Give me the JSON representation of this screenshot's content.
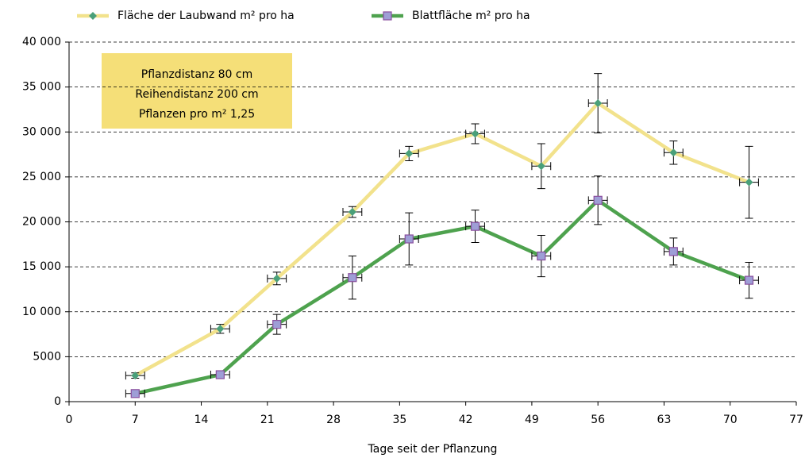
{
  "chart_data": {
    "type": "line",
    "xlabel": "Tage seit der Pflanzung",
    "annotation": [
      "Pflanzdistanz 80 cm",
      "Reihendistanz 200 cm",
      "Pflanzen pro m² 1,25"
    ],
    "x": [
      7,
      16,
      22,
      30,
      36,
      43,
      50,
      56,
      64,
      72
    ],
    "series": [
      {
        "name": "Fläche der Laubwand m² pro ha",
        "color": "#f2e28c",
        "marker": "diamond",
        "marker_color": "#4aa07a",
        "values": [
          2900,
          8100,
          13700,
          21100,
          27600,
          29800,
          26200,
          33200,
          27700,
          24400
        ],
        "y_errors": [
          300,
          500,
          700,
          600,
          800,
          1100,
          2500,
          3300,
          1300,
          4000
        ],
        "x_errors": [
          1,
          1,
          1,
          1,
          1,
          1,
          1,
          1,
          1,
          1
        ]
      },
      {
        "name": "Blattfläche m² pro ha",
        "color": "#4ea24e",
        "marker": "square",
        "marker_color": "#9e9ed6",
        "values": [
          900,
          3000,
          8600,
          13800,
          18100,
          19500,
          16200,
          22400,
          16700,
          13500
        ],
        "y_errors": [
          200,
          200,
          1100,
          2400,
          2900,
          1800,
          2300,
          2700,
          1500,
          2000
        ],
        "x_errors": [
          1,
          1,
          1,
          1,
          1,
          1,
          1,
          1,
          1,
          1
        ]
      }
    ],
    "xlim": [
      0,
      77
    ],
    "xticks": [
      0,
      7,
      14,
      21,
      28,
      35,
      42,
      49,
      56,
      63,
      70,
      77
    ],
    "ylim": [
      0,
      40000
    ],
    "yticks": [
      0,
      5000,
      {
        "value": 10000,
        "label": "10 000"
      },
      {
        "value": 15000,
        "label": "15 000"
      },
      {
        "value": 20000,
        "label": "20 000"
      },
      {
        "value": 25000,
        "label": "25 000"
      },
      {
        "value": 30000,
        "label": "30 000"
      },
      {
        "value": 35000,
        "label": "35 000"
      },
      {
        "value": 40000,
        "label": "40 000"
      }
    ],
    "grid": true,
    "legend": "top"
  }
}
